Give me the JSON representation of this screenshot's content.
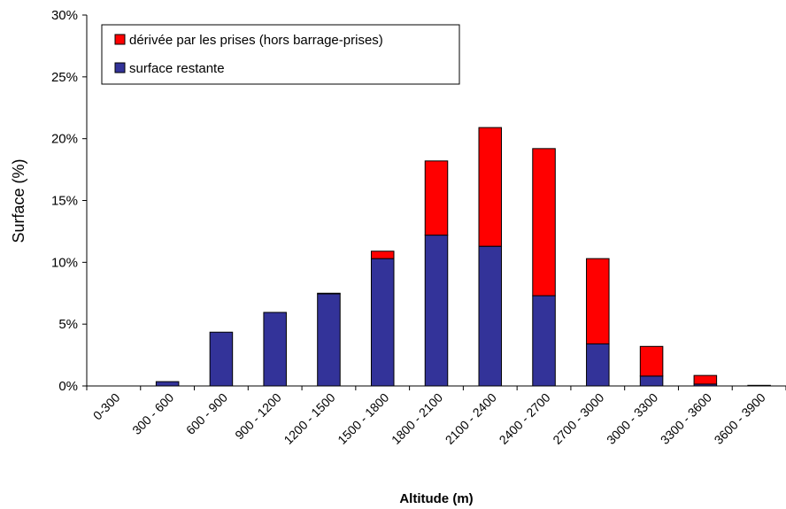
{
  "chart_data": {
    "type": "stacked_bar",
    "xlabel": "Altitude (m)",
    "ylabel": "Surface (%)",
    "categories": [
      "0-300",
      "300 - 600",
      "600 - 900",
      "900 - 1200",
      "1200 - 1500",
      "1500 - 1800",
      "1800 - 2100",
      "2100 - 2400",
      "2400 - 2700",
      "2700 - 3000",
      "3000 - 3300",
      "3300 - 3600",
      "3600 - 3900"
    ],
    "series": [
      {
        "name": "surface restante",
        "color": "#333399",
        "values": [
          0,
          0.35,
          4.35,
          5.95,
          7.45,
          10.3,
          12.2,
          11.3,
          7.3,
          3.4,
          0.8,
          0.15,
          0.05
        ]
      },
      {
        "name": "dérivée par les prises (hors barrage-prises)",
        "color": "#ff0000",
        "values": [
          0,
          0,
          0,
          0,
          0.05,
          0.6,
          6.0,
          9.6,
          11.9,
          6.9,
          2.4,
          0.7,
          0
        ]
      }
    ],
    "ylim": [
      0,
      30
    ],
    "yticks": [
      {
        "value": 0,
        "label": "0%"
      },
      {
        "value": 5,
        "label": "5%"
      },
      {
        "value": 10,
        "label": "10%"
      },
      {
        "value": 15,
        "label": "15%"
      },
      {
        "value": 20,
        "label": "20%"
      },
      {
        "value": 25,
        "label": "25%"
      },
      {
        "value": 30,
        "label": "30%"
      }
    ],
    "legend": "top-left",
    "grid": false
  }
}
